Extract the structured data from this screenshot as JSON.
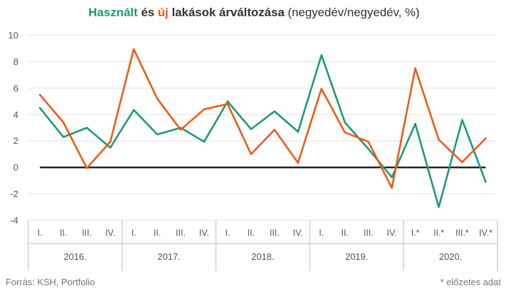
{
  "title": {
    "used": "Használt",
    "and": "és",
    "new": "új",
    "rest": "lakások árváltozása",
    "unit": "(negyedév/negyedév, %)"
  },
  "colors": {
    "used": "#1a9a78",
    "new": "#f05a14",
    "zero": "#222222",
    "grid": "#e2e2e2"
  },
  "chart_data": {
    "type": "line",
    "title": "Használt és új lakások árváltozása (negyedév/negyedév, %)",
    "ylim": [
      -4,
      10
    ],
    "yticks": [
      -4,
      -2,
      0,
      2,
      4,
      6,
      8,
      10
    ],
    "grid": true,
    "categories": [
      "I.",
      "II.",
      "III.",
      "IV.",
      "I.",
      "II.",
      "III.",
      "IV.",
      "I.",
      "II.",
      "III.",
      "IV.",
      "I.",
      "II.",
      "III.",
      "IV.",
      "I.*",
      "II.*",
      "III.*",
      "IV.*"
    ],
    "years": [
      "2016.",
      "2017.",
      "2018.",
      "2019.",
      "2020."
    ],
    "series": [
      {
        "name": "Használt",
        "values": [
          4.5,
          2.3,
          3.0,
          1.5,
          4.35,
          2.5,
          3.0,
          1.95,
          5.0,
          2.9,
          4.25,
          2.7,
          8.5,
          3.4,
          1.4,
          -0.75,
          3.3,
          -3.0,
          3.6,
          -1.1
        ]
      },
      {
        "name": "új",
        "values": [
          5.5,
          3.4,
          -0.05,
          1.95,
          8.95,
          5.2,
          2.85,
          4.4,
          4.8,
          1.0,
          2.85,
          0.35,
          5.95,
          2.65,
          1.95,
          -1.55,
          7.5,
          2.1,
          0.4,
          2.2
        ]
      }
    ]
  },
  "footer": {
    "source": "Forrás: KSH, Portfolio",
    "note": "* előzetes adat"
  }
}
